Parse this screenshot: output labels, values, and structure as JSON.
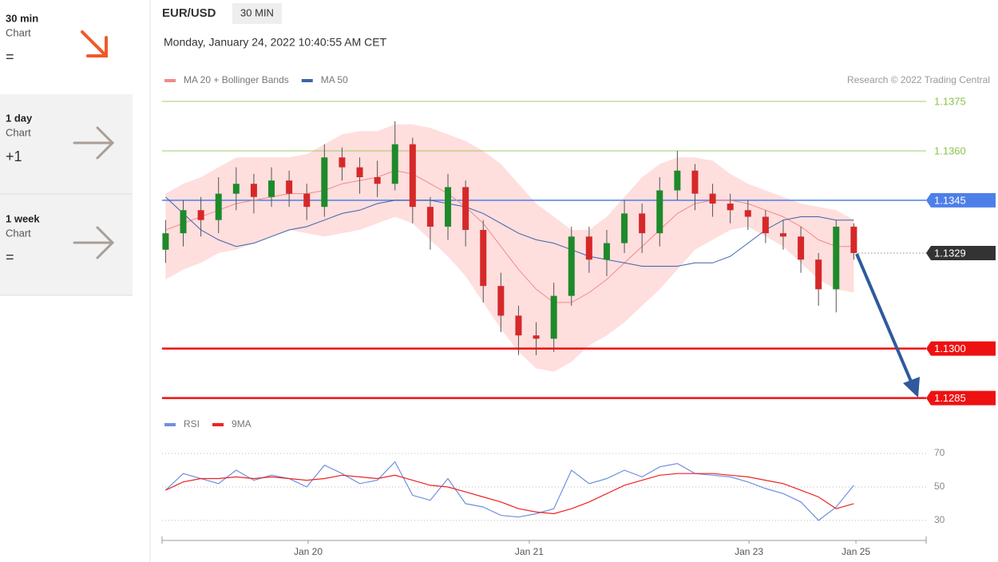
{
  "sidebar": [
    {
      "period": "30 min",
      "label": "Chart",
      "signal": "="
    },
    {
      "period": "1 day",
      "label": "Chart",
      "signal": "+1"
    },
    {
      "period": "1 week",
      "label": "Chart",
      "signal": "="
    }
  ],
  "chart_data": [
    {
      "type": "candlestick",
      "symbol": "EUR/USD",
      "timeframe": "30 MIN",
      "date": "Monday, January 24, 2022 10:40:55 AM CET",
      "credit": "Research © 2022 Trading Central",
      "x": [
        0,
        1,
        2,
        3,
        4,
        5,
        6,
        7,
        8,
        9,
        10,
        11,
        12,
        13,
        14,
        15,
        16,
        17,
        18,
        19,
        20,
        21,
        22,
        23,
        24,
        25,
        26,
        27,
        28,
        29,
        30,
        31,
        32,
        33,
        34,
        35,
        36,
        37,
        38,
        39
      ],
      "open": [
        1.133,
        1.1335,
        1.1342,
        1.1339,
        1.1347,
        1.135,
        1.1346,
        1.1351,
        1.1347,
        1.1343,
        1.1358,
        1.1355,
        1.1352,
        1.135,
        1.1362,
        1.1343,
        1.1337,
        1.1349,
        1.1336,
        1.1319,
        1.131,
        1.1304,
        1.1303,
        1.1316,
        1.1334,
        1.1327,
        1.1332,
        1.1341,
        1.1335,
        1.1348,
        1.1354,
        1.1347,
        1.1344,
        1.1342,
        1.134,
        1.1335,
        1.1334,
        1.1327,
        1.1318,
        1.1337
      ],
      "high": [
        1.1339,
        1.1345,
        1.1346,
        1.1352,
        1.1355,
        1.1353,
        1.1355,
        1.1354,
        1.135,
        1.1362,
        1.1361,
        1.1358,
        1.1357,
        1.1369,
        1.1364,
        1.1346,
        1.1353,
        1.1351,
        1.1339,
        1.1323,
        1.1313,
        1.1308,
        1.132,
        1.1337,
        1.1337,
        1.1336,
        1.1345,
        1.1344,
        1.1352,
        1.136,
        1.1356,
        1.135,
        1.1347,
        1.1345,
        1.1342,
        1.1339,
        1.1337,
        1.1329,
        1.1339,
        1.1338
      ],
      "low": [
        1.1326,
        1.1331,
        1.1334,
        1.1335,
        1.1342,
        1.1341,
        1.1343,
        1.1343,
        1.1339,
        1.134,
        1.1351,
        1.1347,
        1.1346,
        1.1348,
        1.1338,
        1.133,
        1.1333,
        1.1331,
        1.1314,
        1.1305,
        1.1298,
        1.1298,
        1.1299,
        1.1313,
        1.1323,
        1.1322,
        1.1329,
        1.1329,
        1.1331,
        1.1345,
        1.1342,
        1.134,
        1.1338,
        1.1336,
        1.1332,
        1.133,
        1.1323,
        1.1313,
        1.1311,
        1.1327
      ],
      "close": [
        1.1335,
        1.1342,
        1.1339,
        1.1347,
        1.135,
        1.1346,
        1.1351,
        1.1347,
        1.1343,
        1.1358,
        1.1355,
        1.1352,
        1.135,
        1.1362,
        1.1343,
        1.1337,
        1.1349,
        1.1336,
        1.1319,
        1.131,
        1.1304,
        1.1303,
        1.1316,
        1.1334,
        1.1327,
        1.1332,
        1.1341,
        1.1335,
        1.1348,
        1.1354,
        1.1347,
        1.1344,
        1.1342,
        1.134,
        1.1335,
        1.1334,
        1.1327,
        1.1318,
        1.1337,
        1.1329
      ],
      "up_color": "#1e8a2a",
      "down_color": "#d62828",
      "overlays": [
        {
          "name": "MA 20 + Bollinger Bands",
          "color": "#f08a8a",
          "band_color": "#ffdede",
          "values": [
            1.1336,
            1.1338,
            1.134,
            1.1342,
            1.1344,
            1.1345,
            1.1346,
            1.1347,
            1.1347,
            1.1348,
            1.135,
            1.1351,
            1.1352,
            1.1354,
            1.1353,
            1.135,
            1.1347,
            1.1343,
            1.1338,
            1.1331,
            1.1324,
            1.1318,
            1.1314,
            1.1314,
            1.1317,
            1.1321,
            1.1326,
            1.1331,
            1.1336,
            1.1341,
            1.1344,
            1.1345,
            1.1345,
            1.1344,
            1.1342,
            1.134,
            1.1337,
            1.1333,
            1.1331,
            1.1331
          ],
          "upper": [
            1.1347,
            1.135,
            1.1352,
            1.1355,
            1.1358,
            1.1358,
            1.1358,
            1.1358,
            1.1359,
            1.1362,
            1.1365,
            1.1366,
            1.1366,
            1.1368,
            1.1368,
            1.1367,
            1.1365,
            1.1363,
            1.136,
            1.1356,
            1.135,
            1.1344,
            1.134,
            1.1336,
            1.1336,
            1.134,
            1.1346,
            1.1352,
            1.1356,
            1.1358,
            1.1358,
            1.1357,
            1.1353,
            1.135,
            1.1348,
            1.1346,
            1.1344,
            1.1343,
            1.1342,
            1.1339
          ],
          "lower": [
            1.1321,
            1.1324,
            1.1326,
            1.1329,
            1.133,
            1.1332,
            1.1334,
            1.1336,
            1.1335,
            1.1334,
            1.1335,
            1.1336,
            1.1338,
            1.134,
            1.1338,
            1.1333,
            1.1328,
            1.1322,
            1.1314,
            1.1306,
            1.1299,
            1.1294,
            1.1293,
            1.1296,
            1.1301,
            1.1304,
            1.1308,
            1.1313,
            1.1318,
            1.1324,
            1.133,
            1.1333,
            1.1336,
            1.1337,
            1.1334,
            1.1331,
            1.1326,
            1.1321,
            1.1318,
            1.1317
          ]
        },
        {
          "name": "MA 50",
          "color": "#3d63a8",
          "values": [
            1.1346,
            1.1341,
            1.1336,
            1.1333,
            1.1331,
            1.1332,
            1.1334,
            1.1336,
            1.1337,
            1.1339,
            1.1341,
            1.1342,
            1.1344,
            1.1345,
            1.1345,
            1.1345,
            1.1344,
            1.1343,
            1.1341,
            1.1338,
            1.1335,
            1.1333,
            1.1332,
            1.133,
            1.1328,
            1.1327,
            1.1326,
            1.1325,
            1.1325,
            1.1325,
            1.1326,
            1.1326,
            1.1328,
            1.1332,
            1.1336,
            1.1339,
            1.134,
            1.134,
            1.1339,
            1.1339
          ]
        }
      ],
      "levels": [
        1.1375,
        {
          "value": 1.136,
          "label": "1.1360"
        },
        1.1345,
        {
          "value": 1.13,
          "label": "1.1300"
        },
        1.1285
      ],
      "level_colors": [
        "#8bc34a",
        "#8bc34a",
        "#4d7fe8",
        "#ee1111",
        "#ee1111"
      ],
      "level_boxed": [
        false,
        false,
        true,
        true,
        true
      ],
      "last_price": 1.1329,
      "last_price_color": "#333333",
      "xlim": [
        -0.2,
        43.1
      ],
      "ylim": [
        1.1282,
        1.1383
      ]
    },
    {
      "type": "line",
      "x": [
        0,
        1,
        2,
        3,
        4,
        5,
        6,
        7,
        8,
        9,
        10,
        11,
        12,
        13,
        14,
        15,
        16,
        17,
        18,
        19,
        20,
        21,
        22,
        23,
        24,
        25,
        26,
        27,
        28,
        29,
        30,
        31,
        32,
        33,
        34,
        35,
        36,
        37,
        38,
        39
      ],
      "series": [
        {
          "name": "RSI",
          "color": "#6f8fe0",
          "values": [
            48,
            58,
            55,
            52,
            60,
            54,
            57,
            55,
            50,
            63,
            58,
            52,
            54,
            65,
            45,
            42,
            55,
            40,
            38,
            33,
            32,
            34,
            37,
            60,
            52,
            55,
            60,
            56,
            62,
            64,
            58,
            57,
            56,
            53,
            49,
            46,
            41,
            30,
            38,
            51
          ]
        },
        {
          "name": "9MA",
          "color": "#ee2222",
          "values": [
            48,
            53,
            55,
            55,
            56,
            55,
            56,
            55,
            54,
            55,
            57,
            56,
            55,
            57,
            54,
            51,
            50,
            47,
            44,
            41,
            37,
            35,
            34,
            37,
            41,
            46,
            51,
            54,
            57,
            58,
            58,
            58,
            57,
            56,
            54,
            52,
            48,
            44,
            37,
            40
          ]
        }
      ],
      "xlim": [
        -0.2,
        43.1
      ],
      "xticks": [
        {
          "value": 8.08,
          "label": "Jan 20"
        },
        {
          "value": 20.61,
          "label": "Jan 21"
        },
        {
          "value": 33.06,
          "label": "Jan 23"
        },
        {
          "value": 39.12,
          "label": "Jan 25"
        }
      ],
      "ylim": [
        18,
        81
      ],
      "yticks": [
        30,
        50,
        70
      ],
      "grid": true
    }
  ]
}
